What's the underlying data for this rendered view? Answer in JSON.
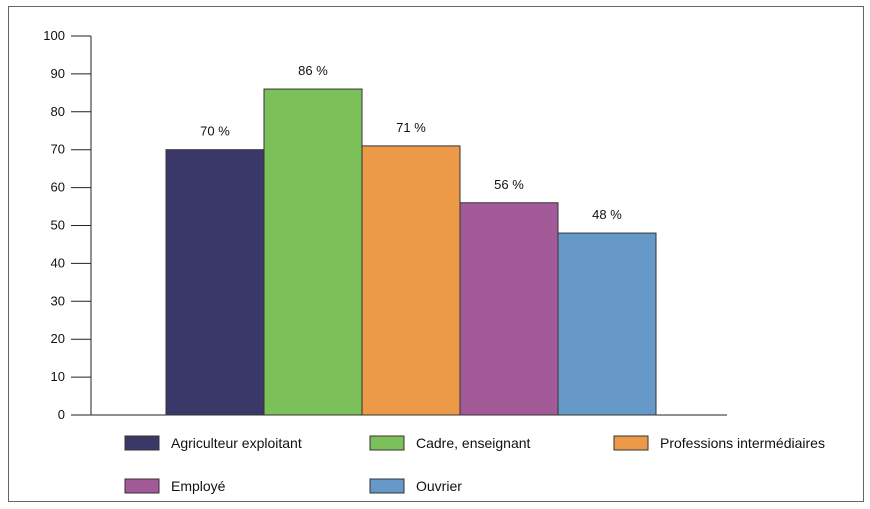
{
  "chart_data": {
    "type": "bar",
    "categories": [
      "Agriculteur exploitant",
      "Cadre, enseignant",
      "Professions intermédiaires",
      "Employé",
      "Ouvrier"
    ],
    "values": [
      70,
      86,
      71,
      56,
      48
    ],
    "data_labels": [
      "70 %",
      "86 %",
      "71 %",
      "56 %",
      "48 %"
    ],
    "colors": [
      "#3a3868",
      "#7cc05a",
      "#ec9a47",
      "#a35a99",
      "#6699c8"
    ],
    "yticks": [
      "0",
      "10",
      "20",
      "30",
      "40",
      "50",
      "60",
      "70",
      "80",
      "90",
      "100"
    ],
    "ylim": [
      0,
      100
    ],
    "legend_position": "bottom",
    "grid": false
  }
}
